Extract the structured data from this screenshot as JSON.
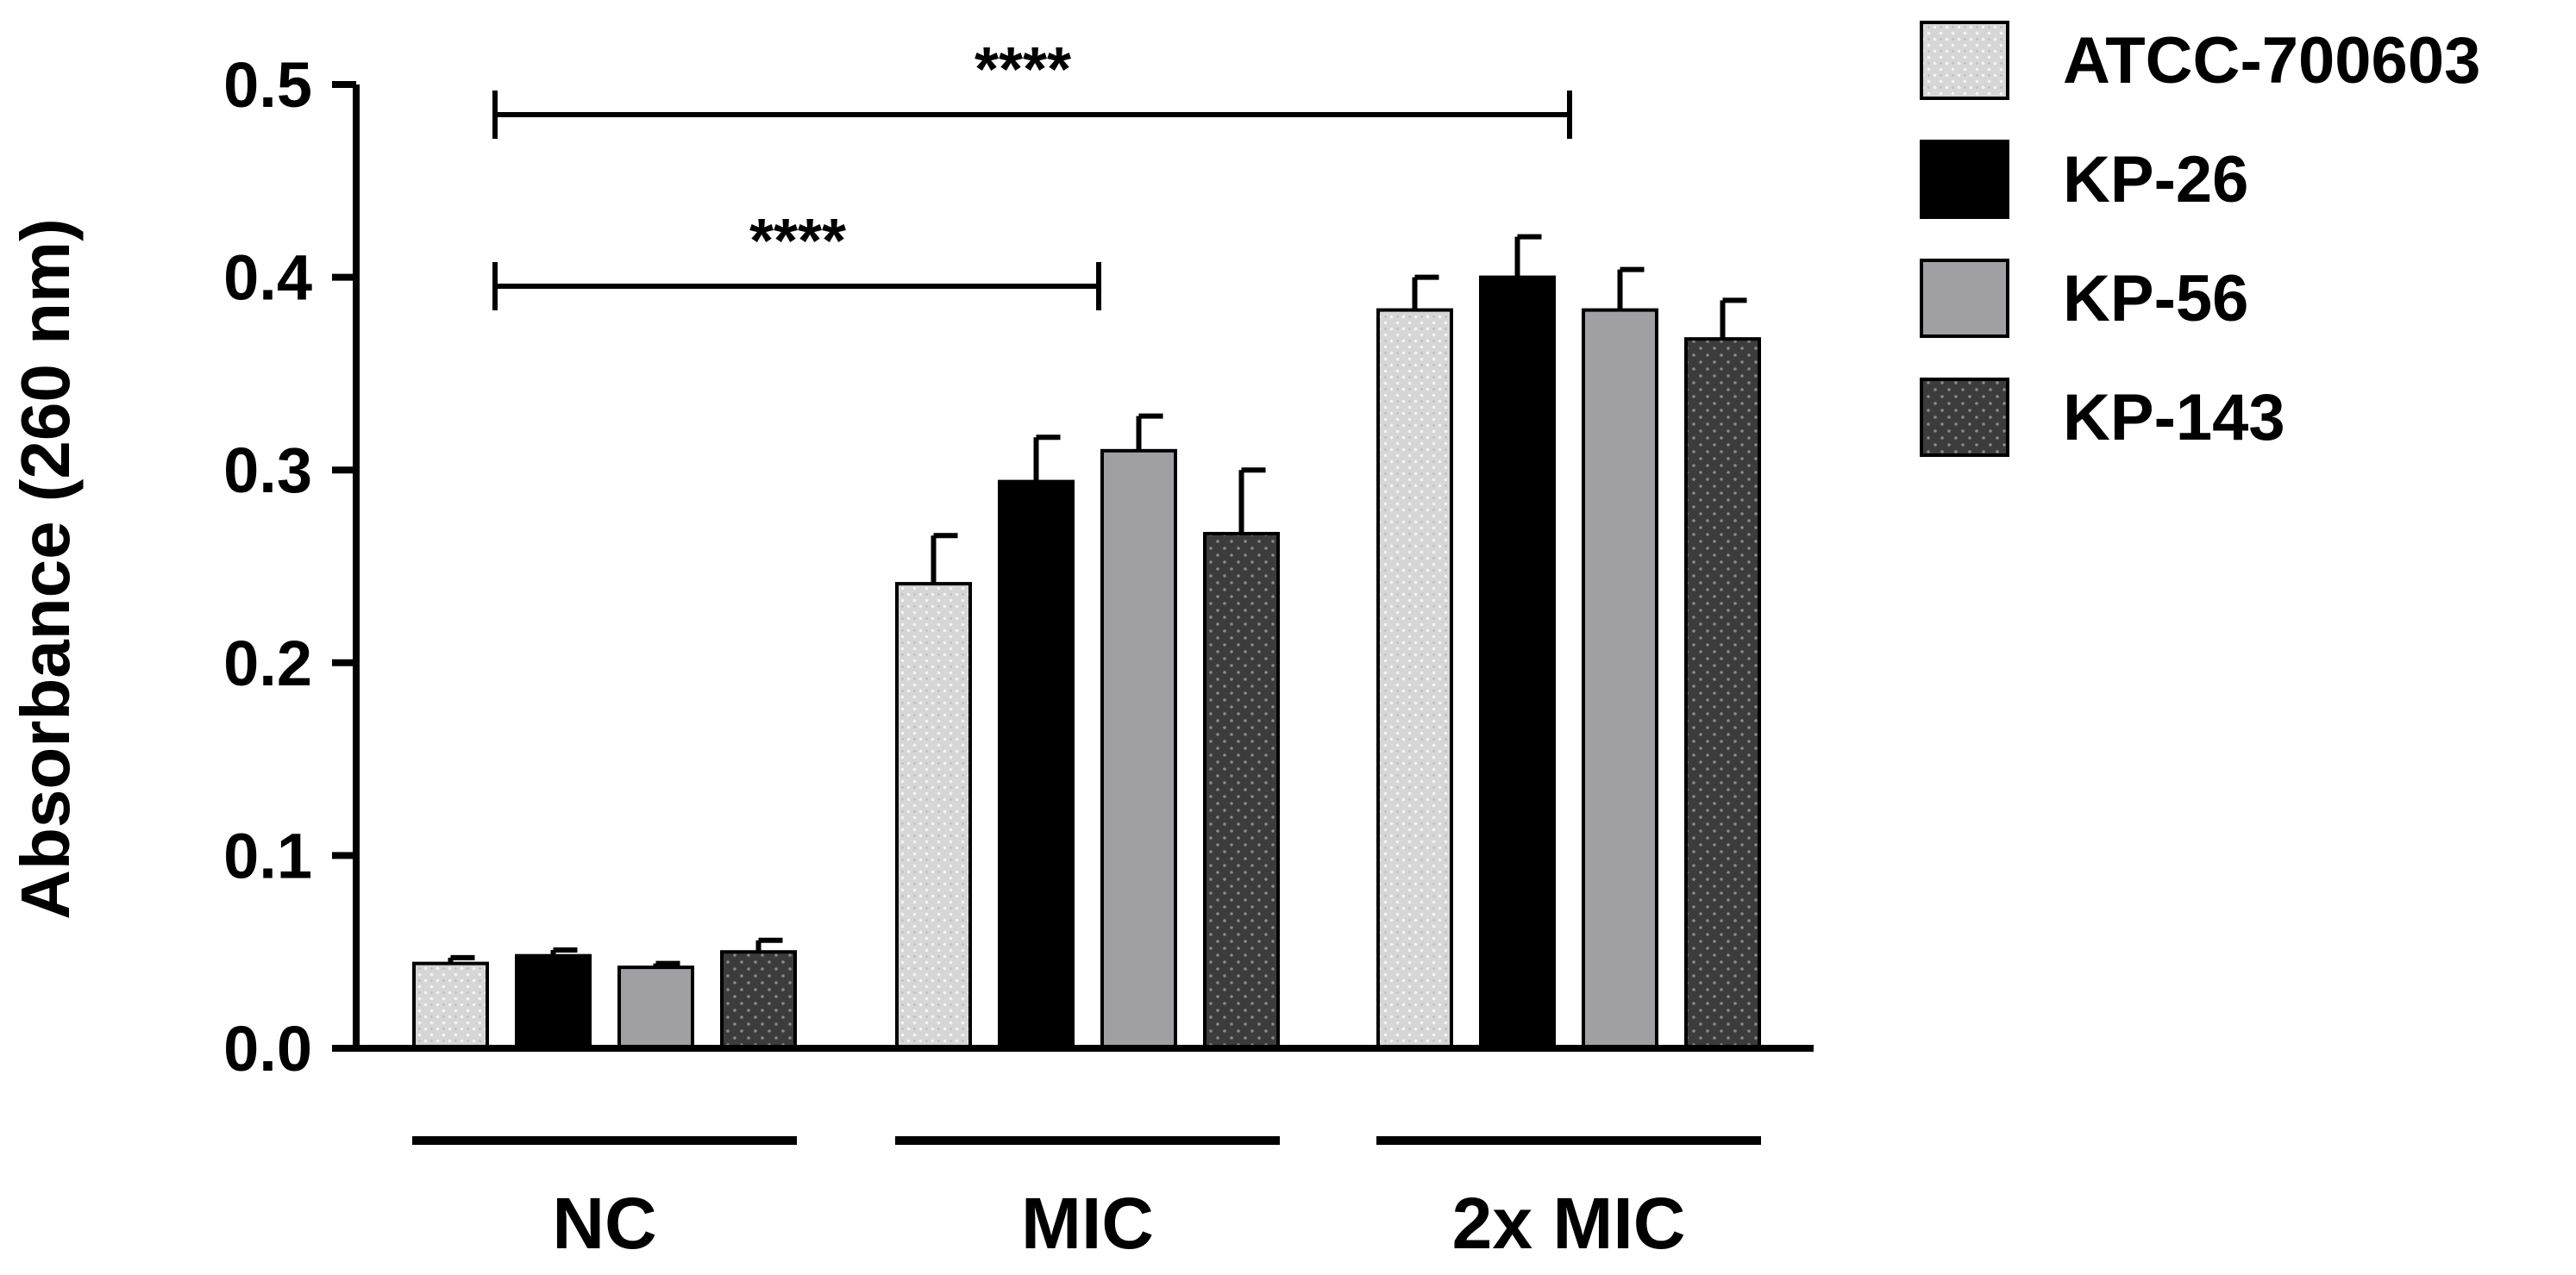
{
  "chart_data": {
    "type": "bar",
    "title": "",
    "xlabel": "",
    "ylabel": "Absorbance (260 nm)",
    "ylim": [
      0,
      0.5
    ],
    "yticks": [
      "0.0",
      "0.1",
      "0.2",
      "0.3",
      "0.4",
      "0.5"
    ],
    "categories": [
      "NC",
      "MIC",
      "2x MIC"
    ],
    "legend_position": "top-right",
    "series": [
      {
        "name": "ATCC-700603",
        "pattern": "light-dotted",
        "color": "#d3d3d3",
        "values": [
          0.044,
          0.241,
          0.383
        ],
        "errors": [
          0.003,
          0.025,
          0.017
        ]
      },
      {
        "name": "KP-26",
        "pattern": "solid",
        "color": "#000000",
        "values": [
          0.048,
          0.294,
          0.4
        ],
        "errors": [
          0.003,
          0.023,
          0.021
        ]
      },
      {
        "name": "KP-56",
        "pattern": "solid",
        "color": "#a0a0a4",
        "values": [
          0.042,
          0.31,
          0.383
        ],
        "errors": [
          0.002,
          0.018,
          0.021
        ]
      },
      {
        "name": "KP-143",
        "pattern": "dark-dotted",
        "color": "#3a3a3a",
        "values": [
          0.05,
          0.267,
          0.368
        ],
        "errors": [
          0.006,
          0.033,
          0.02
        ]
      }
    ],
    "significance": [
      {
        "from": "NC",
        "to": "MIC",
        "label": "****"
      },
      {
        "from": "NC",
        "to": "2x MIC",
        "label": "****"
      }
    ]
  }
}
